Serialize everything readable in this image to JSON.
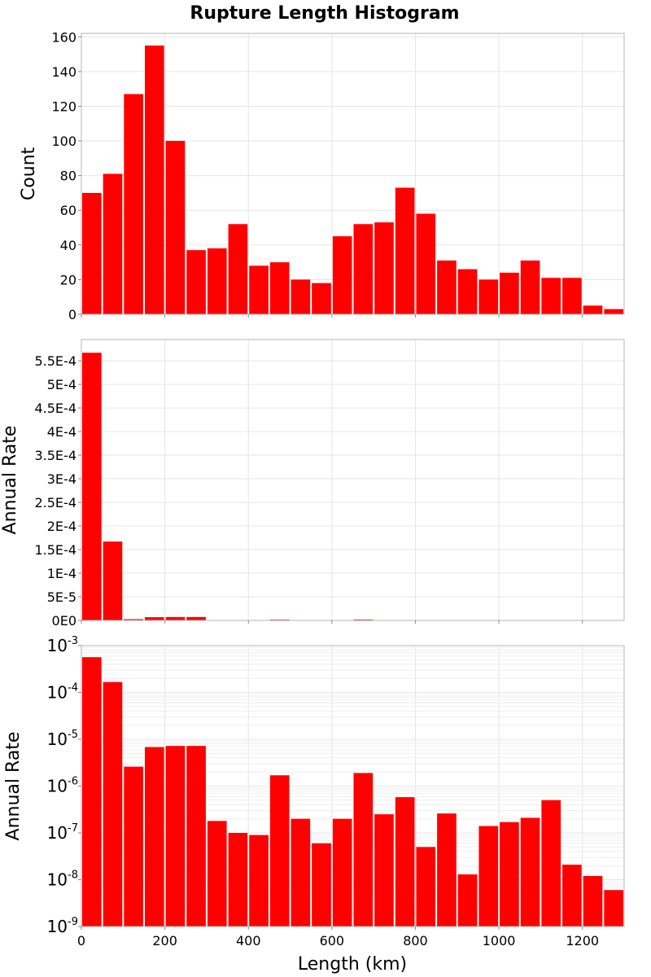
{
  "chart_data": {
    "type": "bar",
    "title": "Rupture Length Histogram",
    "xlabel": "Length (km)",
    "xlim": [
      0,
      1300
    ],
    "bin_width": 50,
    "x_ticks": [
      0,
      200,
      400,
      600,
      800,
      1000,
      1200
    ],
    "bar_color": "#ff0000",
    "panels": [
      {
        "name": "count",
        "ylabel": "Count",
        "scale": "linear",
        "ylim": [
          0,
          162
        ],
        "y_ticks": [
          0,
          20,
          40,
          60,
          80,
          100,
          120,
          140,
          160
        ],
        "y_tick_labels": [
          "0",
          "20",
          "40",
          "60",
          "80",
          "100",
          "120",
          "140",
          "160"
        ],
        "values": [
          70,
          81,
          127,
          155,
          100,
          37,
          38,
          52,
          28,
          30,
          20,
          18,
          45,
          52,
          53,
          73,
          58,
          31,
          26,
          20,
          24,
          31,
          21,
          21,
          5,
          3
        ]
      },
      {
        "name": "rate-linear",
        "ylabel": "Annual Rate",
        "scale": "linear",
        "ylim": [
          0,
          0.000595
        ],
        "y_ticks": [
          0,
          5e-05,
          0.0001,
          0.00015,
          0.0002,
          0.00025,
          0.0003,
          0.00035,
          0.0004,
          0.00045,
          0.0005,
          0.00055
        ],
        "y_tick_labels": [
          "0E0",
          "5E-5",
          "1E-4",
          "1.5E-4",
          "2E-4",
          "2.5E-4",
          "3E-4",
          "3.5E-4",
          "4E-4",
          "4.5E-4",
          "5E-4",
          "5.5E-4"
        ],
        "values": [
          0.000567,
          0.000167,
          2.6e-06,
          6.8e-06,
          7.2e-06,
          7.2e-06,
          1.8e-07,
          1e-07,
          9e-08,
          1.7e-06,
          2e-07,
          6e-08,
          2e-07,
          1.9e-06,
          2.5e-07,
          5.8e-07,
          5e-08,
          2.6e-07,
          1.3e-08,
          1.4e-07,
          1.7e-07,
          2.1e-07,
          5e-07,
          2.1e-08,
          1.2e-08,
          6e-09
        ]
      },
      {
        "name": "rate-log",
        "ylabel": "Annual Rate",
        "scale": "log",
        "ylim": [
          1e-09,
          0.001
        ],
        "y_tick_mantissa": "10",
        "y_tick_exponents": [
          "-9",
          "-8",
          "-7",
          "-6",
          "-5",
          "-4",
          "-3"
        ],
        "values": [
          0.000567,
          0.000167,
          2.6e-06,
          6.8e-06,
          7.2e-06,
          7.2e-06,
          1.8e-07,
          1e-07,
          9e-08,
          1.7e-06,
          2e-07,
          6e-08,
          2e-07,
          1.9e-06,
          2.5e-07,
          5.8e-07,
          5e-08,
          2.6e-07,
          1.3e-08,
          1.4e-07,
          1.7e-07,
          2.1e-07,
          5e-07,
          2.1e-08,
          1.2e-08,
          6e-09
        ]
      }
    ]
  }
}
